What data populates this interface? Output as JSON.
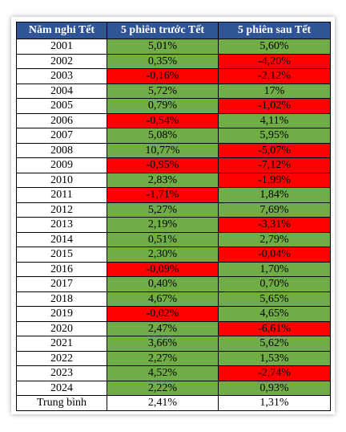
{
  "table": {
    "columns": [
      "Năm nghỉ Tết",
      "5 phiên trước Tết",
      "5 phiên sau Tết"
    ],
    "header_color": "#2f5597",
    "rows": [
      [
        "2001",
        "5,01%",
        "5,60%"
      ],
      [
        "2002",
        "0,35%",
        "-4,20%"
      ],
      [
        "2003",
        "-0,16%",
        "-2,12%"
      ],
      [
        "2004",
        "5,72%",
        "17%"
      ],
      [
        "2005",
        "0,79%",
        "-1,02%"
      ],
      [
        "2006",
        "-0,54%",
        "4,11%"
      ],
      [
        "2007",
        "5,08%",
        "5,95%"
      ],
      [
        "2008",
        "10,77%",
        "-5,07%"
      ],
      [
        "2009",
        "-0,95%",
        "-7,12%"
      ],
      [
        "2010",
        "2,83%",
        "-1,99%"
      ],
      [
        "2011",
        "-1,71%",
        "1,84%"
      ],
      [
        "2012",
        "5,27%",
        "7,69%"
      ],
      [
        "2013",
        "2,19%",
        "-3,31%"
      ],
      [
        "2014",
        "0,51%",
        "2,79%"
      ],
      [
        "2015",
        "2,30%",
        "-0,04%"
      ],
      [
        "2016",
        "-0,09%",
        "1,70%"
      ],
      [
        "2017",
        "0,40%",
        "0,70%"
      ],
      [
        "2018",
        "4,67%",
        "5,65%"
      ],
      [
        "2019",
        "-0,02%",
        "4,65%"
      ],
      [
        "2020",
        "2,47%",
        "-6,61%"
      ],
      [
        "2021",
        "3,66%",
        "5,62%"
      ],
      [
        "2022",
        "2,27%",
        "1,53%"
      ],
      [
        "2023",
        "4,52%",
        "-2,74%"
      ],
      [
        "2024",
        "2,22%",
        "0,93%"
      ],
      [
        "Trung bình",
        "2,41%",
        "1,31%"
      ]
    ],
    "cell_fills": [
      [
        null,
        "#70ad47",
        "#70ad47"
      ],
      [
        null,
        "#70ad47",
        "#ff0000"
      ],
      [
        null,
        "#ff0000",
        "#ff0000"
      ],
      [
        null,
        "#70ad47",
        "#70ad47"
      ],
      [
        null,
        "#70ad47",
        "#ff0000"
      ],
      [
        null,
        "#ff0000",
        "#70ad47"
      ],
      [
        null,
        "#70ad47",
        "#70ad47"
      ],
      [
        null,
        "#70ad47",
        "#ff0000"
      ],
      [
        null,
        "#ff0000",
        "#ff0000"
      ],
      [
        null,
        "#70ad47",
        "#ff0000"
      ],
      [
        null,
        "#ff0000",
        "#70ad47"
      ],
      [
        null,
        "#70ad47",
        "#70ad47"
      ],
      [
        null,
        "#70ad47",
        "#ff0000"
      ],
      [
        null,
        "#70ad47",
        "#70ad47"
      ],
      [
        null,
        "#70ad47",
        "#ff0000"
      ],
      [
        null,
        "#ff0000",
        "#70ad47"
      ],
      [
        null,
        "#70ad47",
        "#70ad47"
      ],
      [
        null,
        "#70ad47",
        "#70ad47"
      ],
      [
        null,
        "#ff0000",
        "#70ad47"
      ],
      [
        null,
        "#70ad47",
        "#ff0000"
      ],
      [
        null,
        "#70ad47",
        "#70ad47"
      ],
      [
        null,
        "#70ad47",
        "#70ad47"
      ],
      [
        null,
        "#70ad47",
        "#ff0000"
      ],
      [
        null,
        "#70ad47",
        "#70ad47"
      ],
      [
        null,
        null,
        null
      ]
    ]
  }
}
